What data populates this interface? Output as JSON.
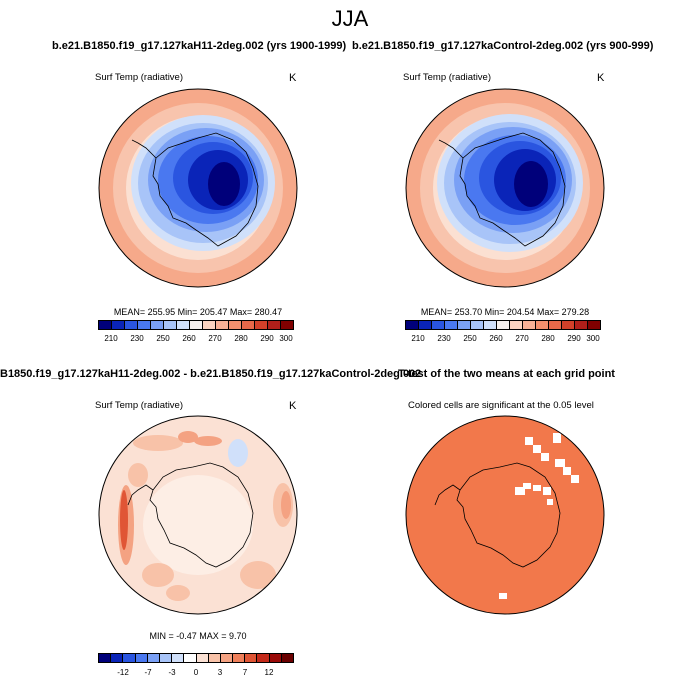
{
  "title": "JJA",
  "panels": {
    "top_left": {
      "header": "b.e21.B1850.f19_g17.127kaH11-2deg.002 (yrs 1900-1999)",
      "variable": "Surf Temp (radiative)",
      "unit": "K",
      "stats": "MEAN= 255.95  Min= 205.47  Max= 280.47",
      "colorbar_ticks": [
        "210",
        "230",
        "250",
        "260",
        "270",
        "280",
        "290",
        "300"
      ]
    },
    "top_right": {
      "header": "b.e21.B1850.f19_g17.127kaControl-2deg.002 (yrs 900-999)",
      "variable": "Surf Temp (radiative)",
      "unit": "K",
      "stats": "MEAN= 253.70  Min= 204.54  Max= 279.28",
      "colorbar_ticks": [
        "210",
        "230",
        "250",
        "260",
        "270",
        "280",
        "290",
        "300"
      ]
    },
    "bottom_header": "B1850.f19_g17.127kaH11-2deg.002 - b.e21.B1850.f19_g17.127kaControl-2deg.002",
    "bottom_header_right": "T-test of the two means at each grid point",
    "bottom_left": {
      "variable": "Surf Temp (radiative)",
      "unit": "K",
      "stats": "MIN = -0.47  MAX =  9.70",
      "colorbar_ticks": [
        "-12",
        "-7",
        "-3",
        "0",
        "3",
        "7",
        "12"
      ]
    },
    "bottom_right": {
      "note": "Colored cells are significant at the 0.05 level"
    }
  },
  "colors": {
    "abs_scale": [
      "#00007a",
      "#0a24b8",
      "#2a55e0",
      "#4a78f0",
      "#7aa0f5",
      "#a8c4f8",
      "#d0e0fa",
      "#f6f0ee",
      "#fbd3c0",
      "#f8b196",
      "#f4906e",
      "#e8684a",
      "#d2402a",
      "#b01f1a",
      "#800000"
    ],
    "diff_scale": [
      "#00007a",
      "#0a24b8",
      "#2a55e0",
      "#4a78f0",
      "#7aa0f5",
      "#a8c4f8",
      "#d0e0fa",
      "#ffffff",
      "#fbe1d4",
      "#f8c2a8",
      "#f4a282",
      "#ef7f5a",
      "#e05535",
      "#c42a1a",
      "#9a0a08",
      "#6a0000"
    ],
    "ttest_fill": "#f2784b",
    "ocean_ring": "#f7b59b",
    "ocean_mid": "#f6d3c3",
    "ice_outer": "#a8c4f8",
    "ice_mid": "#4a78f0",
    "ice_core": "#0a24b8",
    "ice_deep": "#00007a"
  }
}
